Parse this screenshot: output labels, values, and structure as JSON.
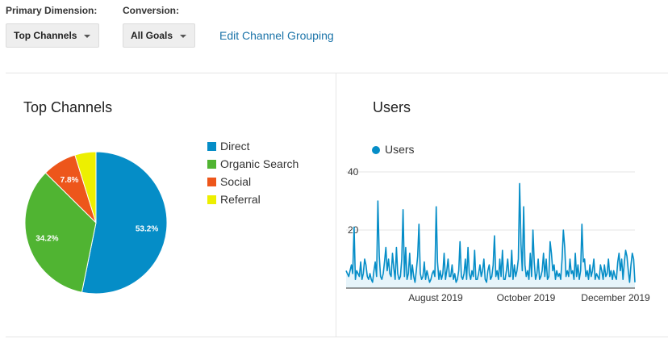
{
  "controls": {
    "primary_dimension_label": "Primary Dimension:",
    "primary_dimension_value": "Top Channels",
    "conversion_label": "Conversion:",
    "conversion_value": "All Goals",
    "edit_link": "Edit Channel Grouping"
  },
  "top_channels": {
    "title": "Top Channels",
    "legend": [
      {
        "label": "Direct",
        "color": "#058dc7"
      },
      {
        "label": "Organic Search",
        "color": "#50b432"
      },
      {
        "label": "Social",
        "color": "#ed561b"
      },
      {
        "label": "Referral",
        "color": "#edef00"
      }
    ],
    "slice_labels": [
      "53.2%",
      "34.2%",
      "7.8%",
      ""
    ]
  },
  "users_chart": {
    "title": "Users",
    "legend_label": "Users",
    "color": "#058dc7",
    "y_ticks": [
      "40",
      "20"
    ],
    "x_ticks": [
      "August 2019",
      "October 2019",
      "December 2019"
    ]
  },
  "chart_data": [
    {
      "type": "pie",
      "title": "Top Channels",
      "categories": [
        "Direct",
        "Organic Search",
        "Social",
        "Referral"
      ],
      "values": [
        53.2,
        34.2,
        7.8,
        4.8
      ]
    },
    {
      "type": "area",
      "title": "Users",
      "series": [
        {
          "name": "Users",
          "values": [
            6,
            5,
            4,
            6,
            8,
            5,
            21,
            3,
            6,
            5,
            4,
            9,
            3,
            5,
            10,
            8,
            4,
            3,
            5,
            3,
            2,
            6,
            9,
            4,
            30,
            11,
            4,
            3,
            5,
            9,
            14,
            6,
            10,
            5,
            4,
            12,
            7,
            3,
            14,
            5,
            3,
            4,
            10,
            27,
            4,
            14,
            3,
            5,
            12,
            3,
            8,
            4,
            2,
            6,
            11,
            22,
            5,
            3,
            4,
            9,
            3,
            6,
            4,
            2,
            3,
            5,
            6,
            4,
            28,
            9,
            3,
            6,
            3,
            5,
            12,
            3,
            6,
            10,
            4,
            4,
            8,
            3,
            5,
            2,
            3,
            6,
            16,
            4,
            3,
            5,
            10,
            3,
            14,
            5,
            3,
            6,
            4,
            13,
            3,
            3,
            5,
            8,
            4,
            6,
            10,
            3,
            2,
            6,
            8,
            3,
            4,
            8,
            18,
            4,
            6,
            3,
            10,
            4,
            13,
            3,
            3,
            6,
            10,
            4,
            4,
            13,
            3,
            8,
            4,
            6,
            10,
            36,
            15,
            6,
            28,
            8,
            4,
            6,
            3,
            12,
            4,
            20,
            9,
            3,
            5,
            10,
            3,
            4,
            6,
            12,
            4,
            10,
            3,
            4,
            16,
            12,
            6,
            8,
            3,
            6,
            4,
            5,
            3,
            10,
            20,
            14,
            4,
            6,
            4,
            10,
            5,
            6,
            3,
            12,
            4,
            8,
            3,
            6,
            22,
            9,
            10,
            4,
            6,
            3,
            8,
            4,
            6,
            10,
            3,
            5,
            4,
            3,
            8,
            6,
            3,
            8,
            4,
            5,
            10,
            4,
            6,
            3,
            6,
            4,
            3,
            9,
            12,
            6,
            10,
            3,
            9,
            13,
            11,
            6,
            2,
            8,
            12,
            10,
            2
          ]
        }
      ],
      "ylim": [
        0,
        40
      ]
    }
  ]
}
